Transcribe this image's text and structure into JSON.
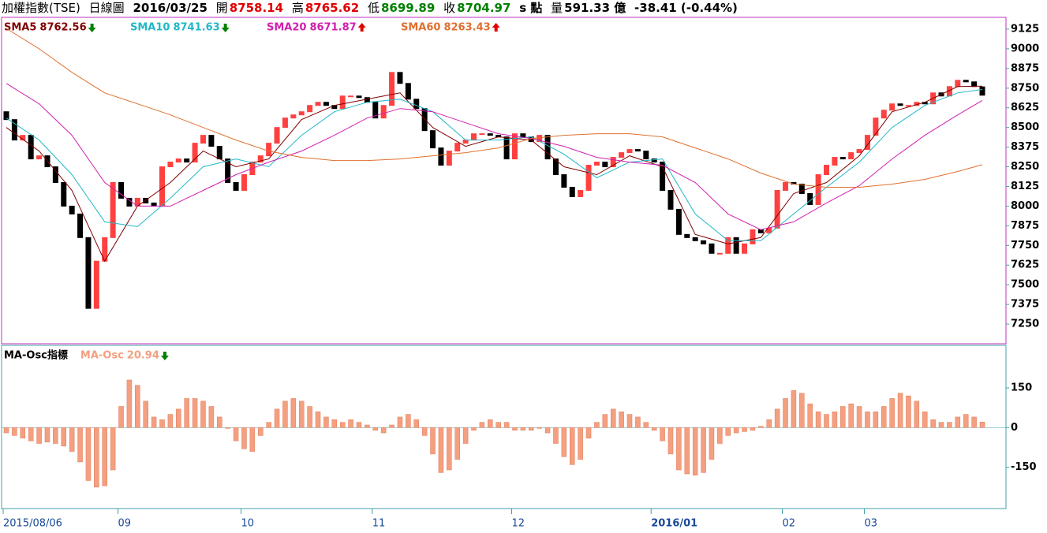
{
  "chart_data": [
    {
      "type": "candlestick",
      "header": {
        "symbol": "加權指數(TSE)",
        "period": "日線圖",
        "date": "2016/03/25",
        "open_label": "開",
        "high_label": "高",
        "high": 8765.62,
        "low_label": "低",
        "low": 8699.89,
        "close_label": "收",
        "unit": "s 點",
        "volume_label": "量",
        "volume": "591.33 億",
        "change": "-38.41 (-0.44%)"
      },
      "categories": [
        "2015/08/06",
        null,
        null,
        null,
        null,
        null,
        null,
        null,
        null,
        null,
        null,
        null,
        null,
        null,
        "09",
        null,
        null,
        null,
        null,
        null,
        null,
        null,
        null,
        null,
        null,
        null,
        null,
        null,
        null,
        "10",
        null,
        null,
        null,
        null,
        null,
        null,
        null,
        null,
        null,
        null,
        null,
        null,
        null,
        null,
        null,
        "11",
        null,
        null,
        null,
        null,
        null,
        null,
        null,
        null,
        null,
        null,
        null,
        null,
        null,
        null,
        null,
        null,
        "12",
        null,
        null,
        null,
        null,
        null,
        null,
        null,
        null,
        null,
        null,
        null,
        null,
        null,
        null,
        null,
        null,
        "2016/01",
        null,
        null,
        null,
        null,
        null,
        null,
        null,
        null,
        null,
        null,
        null,
        null,
        null,
        null,
        null,
        "02",
        null,
        null,
        null,
        null,
        null,
        null,
        null,
        null,
        null,
        "03",
        null,
        null,
        null,
        null,
        null,
        null,
        null,
        null,
        null,
        null,
        null,
        null,
        null,
        null
      ],
      "open": [
        8600,
        8550,
        8420,
        8450,
        8300,
        8320,
        8250,
        8150,
        8000,
        7950,
        7800,
        7350,
        7650,
        7800,
        8150,
        8050,
        8000,
        8050,
        8020,
        8000,
        8250,
        8280,
        8300,
        8280,
        8400,
        8450,
        8380,
        8300,
        8150,
        8100,
        8200,
        8280,
        8320,
        8400,
        8500,
        8560,
        8580,
        8600,
        8640,
        8660,
        8640,
        8620,
        8700,
        8700,
        8690,
        8660,
        8560,
        8640,
        8850,
        8780,
        8680,
        8620,
        8480,
        8370,
        8260,
        8350,
        8400,
        8420,
        8460,
        8460,
        8450,
        8440,
        8300,
        8460,
        8440,
        8410,
        8450,
        8300,
        8200,
        8120,
        8060,
        8100,
        8260,
        8280,
        8250,
        8310,
        8340,
        8360,
        8350,
        8300,
        8280,
        8100,
        7980,
        7820,
        7800,
        7780,
        7760,
        7700,
        7700,
        7800,
        7700,
        7760,
        7850,
        7830,
        7860,
        8100,
        8150,
        8140,
        8080,
        8010,
        8200,
        8260,
        8310,
        8300,
        8340,
        8360,
        8450,
        8560,
        8610,
        8650,
        8640,
        8640,
        8660,
        8650,
        8720,
        8700,
        8760,
        8800,
        8790,
        8758.14
      ],
      "close": [
        8550,
        8420,
        8450,
        8300,
        8320,
        8250,
        8150,
        8000,
        7950,
        7800,
        7350,
        7650,
        7800,
        8150,
        8050,
        8000,
        8050,
        8020,
        8000,
        8250,
        8280,
        8300,
        8280,
        8400,
        8450,
        8380,
        8300,
        8150,
        8100,
        8200,
        8280,
        8320,
        8400,
        8500,
        8560,
        8580,
        8600,
        8640,
        8660,
        8640,
        8620,
        8700,
        8700,
        8690,
        8660,
        8560,
        8640,
        8850,
        8780,
        8680,
        8620,
        8480,
        8370,
        8260,
        8350,
        8400,
        8420,
        8460,
        8460,
        8450,
        8440,
        8300,
        8460,
        8440,
        8410,
        8450,
        8300,
        8200,
        8120,
        8060,
        8100,
        8260,
        8280,
        8250,
        8310,
        8340,
        8360,
        8350,
        8300,
        8280,
        8100,
        7980,
        7820,
        7800,
        7780,
        7760,
        7700,
        7700,
        7800,
        7700,
        7760,
        7850,
        7830,
        7860,
        8100,
        8150,
        8140,
        8080,
        8010,
        8200,
        8260,
        8310,
        8300,
        8340,
        8360,
        8450,
        8560,
        8610,
        8650,
        8640,
        8640,
        8660,
        8650,
        8720,
        8700,
        8760,
        8800,
        8790,
        8760,
        8704.97
      ],
      "up_color": "#ff4040",
      "down_color": "#000000",
      "series": [
        {
          "name": "SMA5",
          "color": "#800000",
          "trend": "down",
          "x": [
            0,
            4,
            8,
            12,
            16,
            20,
            24,
            28,
            32,
            36,
            40,
            44,
            48,
            52,
            56,
            60,
            64,
            68,
            72,
            76,
            80,
            84,
            88,
            92,
            96,
            100,
            104,
            108,
            112,
            116,
            119
          ],
          "values": [
            8500,
            8350,
            8100,
            7650,
            8000,
            8150,
            8350,
            8250,
            8300,
            8550,
            8640,
            8680,
            8720,
            8500,
            8380,
            8440,
            8420,
            8250,
            8200,
            8320,
            8250,
            7820,
            7760,
            7800,
            8080,
            8150,
            8320,
            8600,
            8660,
            8760,
            8762.56
          ]
        },
        {
          "name": "SMA10",
          "color": "#20b8c8",
          "trend": "down",
          "x": [
            0,
            4,
            8,
            12,
            16,
            20,
            24,
            28,
            32,
            36,
            40,
            44,
            48,
            52,
            56,
            60,
            64,
            68,
            72,
            76,
            80,
            84,
            88,
            92,
            96,
            100,
            104,
            108,
            112,
            116,
            119
          ],
          "values": [
            8560,
            8420,
            8200,
            7900,
            7870,
            8050,
            8250,
            8300,
            8250,
            8450,
            8600,
            8660,
            8680,
            8600,
            8420,
            8420,
            8440,
            8330,
            8180,
            8280,
            8300,
            7950,
            7780,
            7780,
            7950,
            8120,
            8280,
            8500,
            8640,
            8720,
            8741.63
          ]
        },
        {
          "name": "SMA20",
          "color": "#d020b0",
          "trend": "up",
          "x": [
            0,
            4,
            8,
            12,
            16,
            20,
            24,
            28,
            32,
            36,
            40,
            44,
            48,
            52,
            56,
            60,
            64,
            68,
            72,
            76,
            80,
            84,
            88,
            92,
            96,
            100,
            104,
            108,
            112,
            116,
            119
          ],
          "values": [
            8780,
            8650,
            8450,
            8150,
            8000,
            8000,
            8100,
            8200,
            8280,
            8350,
            8450,
            8560,
            8620,
            8600,
            8530,
            8460,
            8430,
            8380,
            8310,
            8280,
            8260,
            8150,
            7950,
            7850,
            7900,
            8020,
            8130,
            8300,
            8450,
            8580,
            8671.87
          ]
        },
        {
          "name": "SMA60",
          "color": "#e07030",
          "trend": "up",
          "x": [
            0,
            4,
            8,
            12,
            16,
            20,
            24,
            28,
            32,
            36,
            40,
            44,
            48,
            52,
            56,
            60,
            64,
            68,
            72,
            76,
            80,
            84,
            88,
            92,
            96,
            100,
            104,
            108,
            112,
            116,
            119
          ],
          "values": [
            9130,
            9000,
            8850,
            8720,
            8650,
            8580,
            8500,
            8420,
            8350,
            8310,
            8290,
            8290,
            8300,
            8320,
            8340,
            8370,
            8430,
            8450,
            8460,
            8460,
            8440,
            8370,
            8300,
            8210,
            8140,
            8120,
            8120,
            8140,
            8170,
            8220,
            8263.43
          ]
        }
      ],
      "ylim": [
        7135,
        9190
      ],
      "yticks": [
        7250,
        7375,
        7500,
        7625,
        7750,
        7875,
        8000,
        8125,
        8250,
        8375,
        8500,
        8625,
        8750,
        8875,
        9000,
        9125
      ]
    },
    {
      "type": "bar",
      "title": "MA-Osc指標",
      "name": "MA-Osc",
      "color": "#f4a080",
      "trend": "down",
      "values": [
        -20,
        -30,
        -40,
        -50,
        -60,
        -55,
        -60,
        -70,
        -90,
        -130,
        -200,
        -225,
        -220,
        -160,
        80,
        180,
        160,
        100,
        40,
        30,
        50,
        70,
        110,
        110,
        100,
        80,
        40,
        0,
        -50,
        -80,
        -90,
        -30,
        20,
        70,
        100,
        110,
        100,
        80,
        60,
        40,
        30,
        20,
        30,
        20,
        10,
        -10,
        -20,
        10,
        40,
        50,
        30,
        -30,
        -100,
        -170,
        -160,
        -120,
        -60,
        -10,
        20,
        30,
        20,
        20,
        -10,
        -10,
        -10,
        0,
        -20,
        -60,
        -110,
        -140,
        -120,
        -40,
        20,
        50,
        70,
        60,
        50,
        40,
        20,
        -10,
        -50,
        -100,
        -160,
        -175,
        -180,
        -170,
        -120,
        -60,
        -30,
        -20,
        -15,
        -10,
        5,
        30,
        70,
        110,
        140,
        130,
        90,
        60,
        50,
        60,
        80,
        90,
        80,
        60,
        60,
        80,
        110,
        130,
        120,
        100,
        60,
        30,
        20,
        20,
        40,
        50,
        40,
        20.94
      ],
      "ylim": [
        -300,
        305
      ],
      "yticks": [
        -150,
        0,
        150
      ]
    }
  ]
}
